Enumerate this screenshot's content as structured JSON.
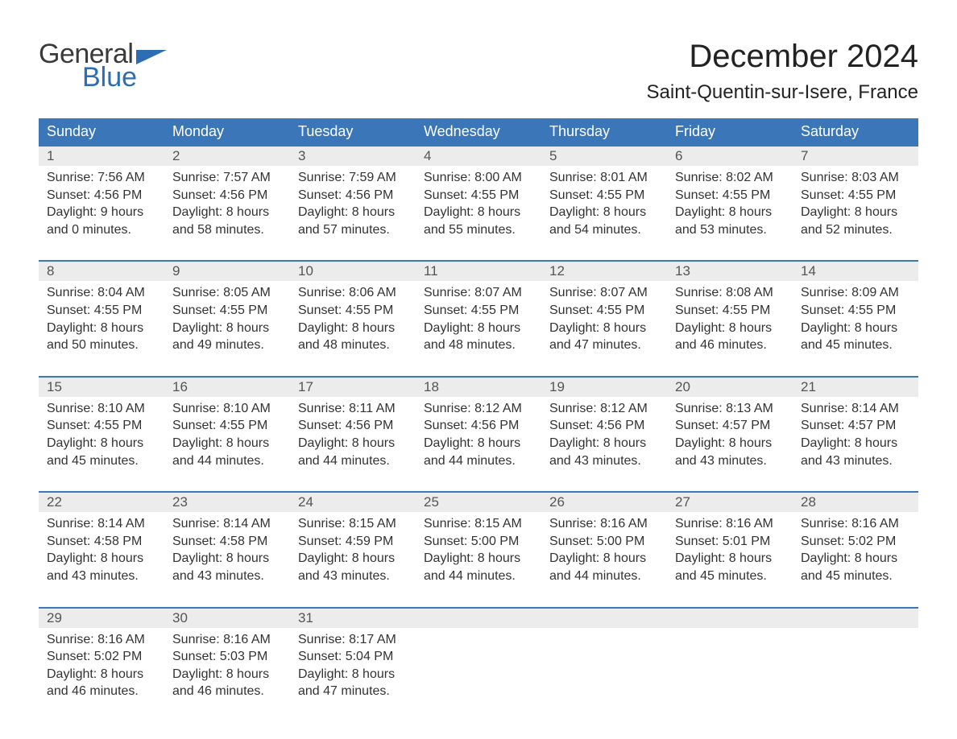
{
  "logo": {
    "general": "General",
    "blue": "Blue"
  },
  "title": "December 2024",
  "location": "Saint-Quentin-sur-Isere, France",
  "weekdays": [
    "Sunday",
    "Monday",
    "Tuesday",
    "Wednesday",
    "Thursday",
    "Friday",
    "Saturday"
  ],
  "style": {
    "header_bg": "#3b77b8",
    "header_fg": "#ffffff",
    "rule_color": "#3b77b8",
    "stripe_bg": "#ececec",
    "page_bg": "#ffffff",
    "text_color": "#333333",
    "title_fontsize": 40,
    "location_fontsize": 24,
    "header_fontsize": 18,
    "daynum_fontsize": 17,
    "body_fontsize": 16
  },
  "weeks": [
    [
      {
        "day": "1",
        "sunrise": "Sunrise: 7:56 AM",
        "sunset": "Sunset: 4:56 PM",
        "dl1": "Daylight: 9 hours",
        "dl2": "and 0 minutes."
      },
      {
        "day": "2",
        "sunrise": "Sunrise: 7:57 AM",
        "sunset": "Sunset: 4:56 PM",
        "dl1": "Daylight: 8 hours",
        "dl2": "and 58 minutes."
      },
      {
        "day": "3",
        "sunrise": "Sunrise: 7:59 AM",
        "sunset": "Sunset: 4:56 PM",
        "dl1": "Daylight: 8 hours",
        "dl2": "and 57 minutes."
      },
      {
        "day": "4",
        "sunrise": "Sunrise: 8:00 AM",
        "sunset": "Sunset: 4:55 PM",
        "dl1": "Daylight: 8 hours",
        "dl2": "and 55 minutes."
      },
      {
        "day": "5",
        "sunrise": "Sunrise: 8:01 AM",
        "sunset": "Sunset: 4:55 PM",
        "dl1": "Daylight: 8 hours",
        "dl2": "and 54 minutes."
      },
      {
        "day": "6",
        "sunrise": "Sunrise: 8:02 AM",
        "sunset": "Sunset: 4:55 PM",
        "dl1": "Daylight: 8 hours",
        "dl2": "and 53 minutes."
      },
      {
        "day": "7",
        "sunrise": "Sunrise: 8:03 AM",
        "sunset": "Sunset: 4:55 PM",
        "dl1": "Daylight: 8 hours",
        "dl2": "and 52 minutes."
      }
    ],
    [
      {
        "day": "8",
        "sunrise": "Sunrise: 8:04 AM",
        "sunset": "Sunset: 4:55 PM",
        "dl1": "Daylight: 8 hours",
        "dl2": "and 50 minutes."
      },
      {
        "day": "9",
        "sunrise": "Sunrise: 8:05 AM",
        "sunset": "Sunset: 4:55 PM",
        "dl1": "Daylight: 8 hours",
        "dl2": "and 49 minutes."
      },
      {
        "day": "10",
        "sunrise": "Sunrise: 8:06 AM",
        "sunset": "Sunset: 4:55 PM",
        "dl1": "Daylight: 8 hours",
        "dl2": "and 48 minutes."
      },
      {
        "day": "11",
        "sunrise": "Sunrise: 8:07 AM",
        "sunset": "Sunset: 4:55 PM",
        "dl1": "Daylight: 8 hours",
        "dl2": "and 48 minutes."
      },
      {
        "day": "12",
        "sunrise": "Sunrise: 8:07 AM",
        "sunset": "Sunset: 4:55 PM",
        "dl1": "Daylight: 8 hours",
        "dl2": "and 47 minutes."
      },
      {
        "day": "13",
        "sunrise": "Sunrise: 8:08 AM",
        "sunset": "Sunset: 4:55 PM",
        "dl1": "Daylight: 8 hours",
        "dl2": "and 46 minutes."
      },
      {
        "day": "14",
        "sunrise": "Sunrise: 8:09 AM",
        "sunset": "Sunset: 4:55 PM",
        "dl1": "Daylight: 8 hours",
        "dl2": "and 45 minutes."
      }
    ],
    [
      {
        "day": "15",
        "sunrise": "Sunrise: 8:10 AM",
        "sunset": "Sunset: 4:55 PM",
        "dl1": "Daylight: 8 hours",
        "dl2": "and 45 minutes."
      },
      {
        "day": "16",
        "sunrise": "Sunrise: 8:10 AM",
        "sunset": "Sunset: 4:55 PM",
        "dl1": "Daylight: 8 hours",
        "dl2": "and 44 minutes."
      },
      {
        "day": "17",
        "sunrise": "Sunrise: 8:11 AM",
        "sunset": "Sunset: 4:56 PM",
        "dl1": "Daylight: 8 hours",
        "dl2": "and 44 minutes."
      },
      {
        "day": "18",
        "sunrise": "Sunrise: 8:12 AM",
        "sunset": "Sunset: 4:56 PM",
        "dl1": "Daylight: 8 hours",
        "dl2": "and 44 minutes."
      },
      {
        "day": "19",
        "sunrise": "Sunrise: 8:12 AM",
        "sunset": "Sunset: 4:56 PM",
        "dl1": "Daylight: 8 hours",
        "dl2": "and 43 minutes."
      },
      {
        "day": "20",
        "sunrise": "Sunrise: 8:13 AM",
        "sunset": "Sunset: 4:57 PM",
        "dl1": "Daylight: 8 hours",
        "dl2": "and 43 minutes."
      },
      {
        "day": "21",
        "sunrise": "Sunrise: 8:14 AM",
        "sunset": "Sunset: 4:57 PM",
        "dl1": "Daylight: 8 hours",
        "dl2": "and 43 minutes."
      }
    ],
    [
      {
        "day": "22",
        "sunrise": "Sunrise: 8:14 AM",
        "sunset": "Sunset: 4:58 PM",
        "dl1": "Daylight: 8 hours",
        "dl2": "and 43 minutes."
      },
      {
        "day": "23",
        "sunrise": "Sunrise: 8:14 AM",
        "sunset": "Sunset: 4:58 PM",
        "dl1": "Daylight: 8 hours",
        "dl2": "and 43 minutes."
      },
      {
        "day": "24",
        "sunrise": "Sunrise: 8:15 AM",
        "sunset": "Sunset: 4:59 PM",
        "dl1": "Daylight: 8 hours",
        "dl2": "and 43 minutes."
      },
      {
        "day": "25",
        "sunrise": "Sunrise: 8:15 AM",
        "sunset": "Sunset: 5:00 PM",
        "dl1": "Daylight: 8 hours",
        "dl2": "and 44 minutes."
      },
      {
        "day": "26",
        "sunrise": "Sunrise: 8:16 AM",
        "sunset": "Sunset: 5:00 PM",
        "dl1": "Daylight: 8 hours",
        "dl2": "and 44 minutes."
      },
      {
        "day": "27",
        "sunrise": "Sunrise: 8:16 AM",
        "sunset": "Sunset: 5:01 PM",
        "dl1": "Daylight: 8 hours",
        "dl2": "and 45 minutes."
      },
      {
        "day": "28",
        "sunrise": "Sunrise: 8:16 AM",
        "sunset": "Sunset: 5:02 PM",
        "dl1": "Daylight: 8 hours",
        "dl2": "and 45 minutes."
      }
    ],
    [
      {
        "day": "29",
        "sunrise": "Sunrise: 8:16 AM",
        "sunset": "Sunset: 5:02 PM",
        "dl1": "Daylight: 8 hours",
        "dl2": "and 46 minutes."
      },
      {
        "day": "30",
        "sunrise": "Sunrise: 8:16 AM",
        "sunset": "Sunset: 5:03 PM",
        "dl1": "Daylight: 8 hours",
        "dl2": "and 46 minutes."
      },
      {
        "day": "31",
        "sunrise": "Sunrise: 8:17 AM",
        "sunset": "Sunset: 5:04 PM",
        "dl1": "Daylight: 8 hours",
        "dl2": "and 47 minutes."
      },
      null,
      null,
      null,
      null
    ]
  ]
}
